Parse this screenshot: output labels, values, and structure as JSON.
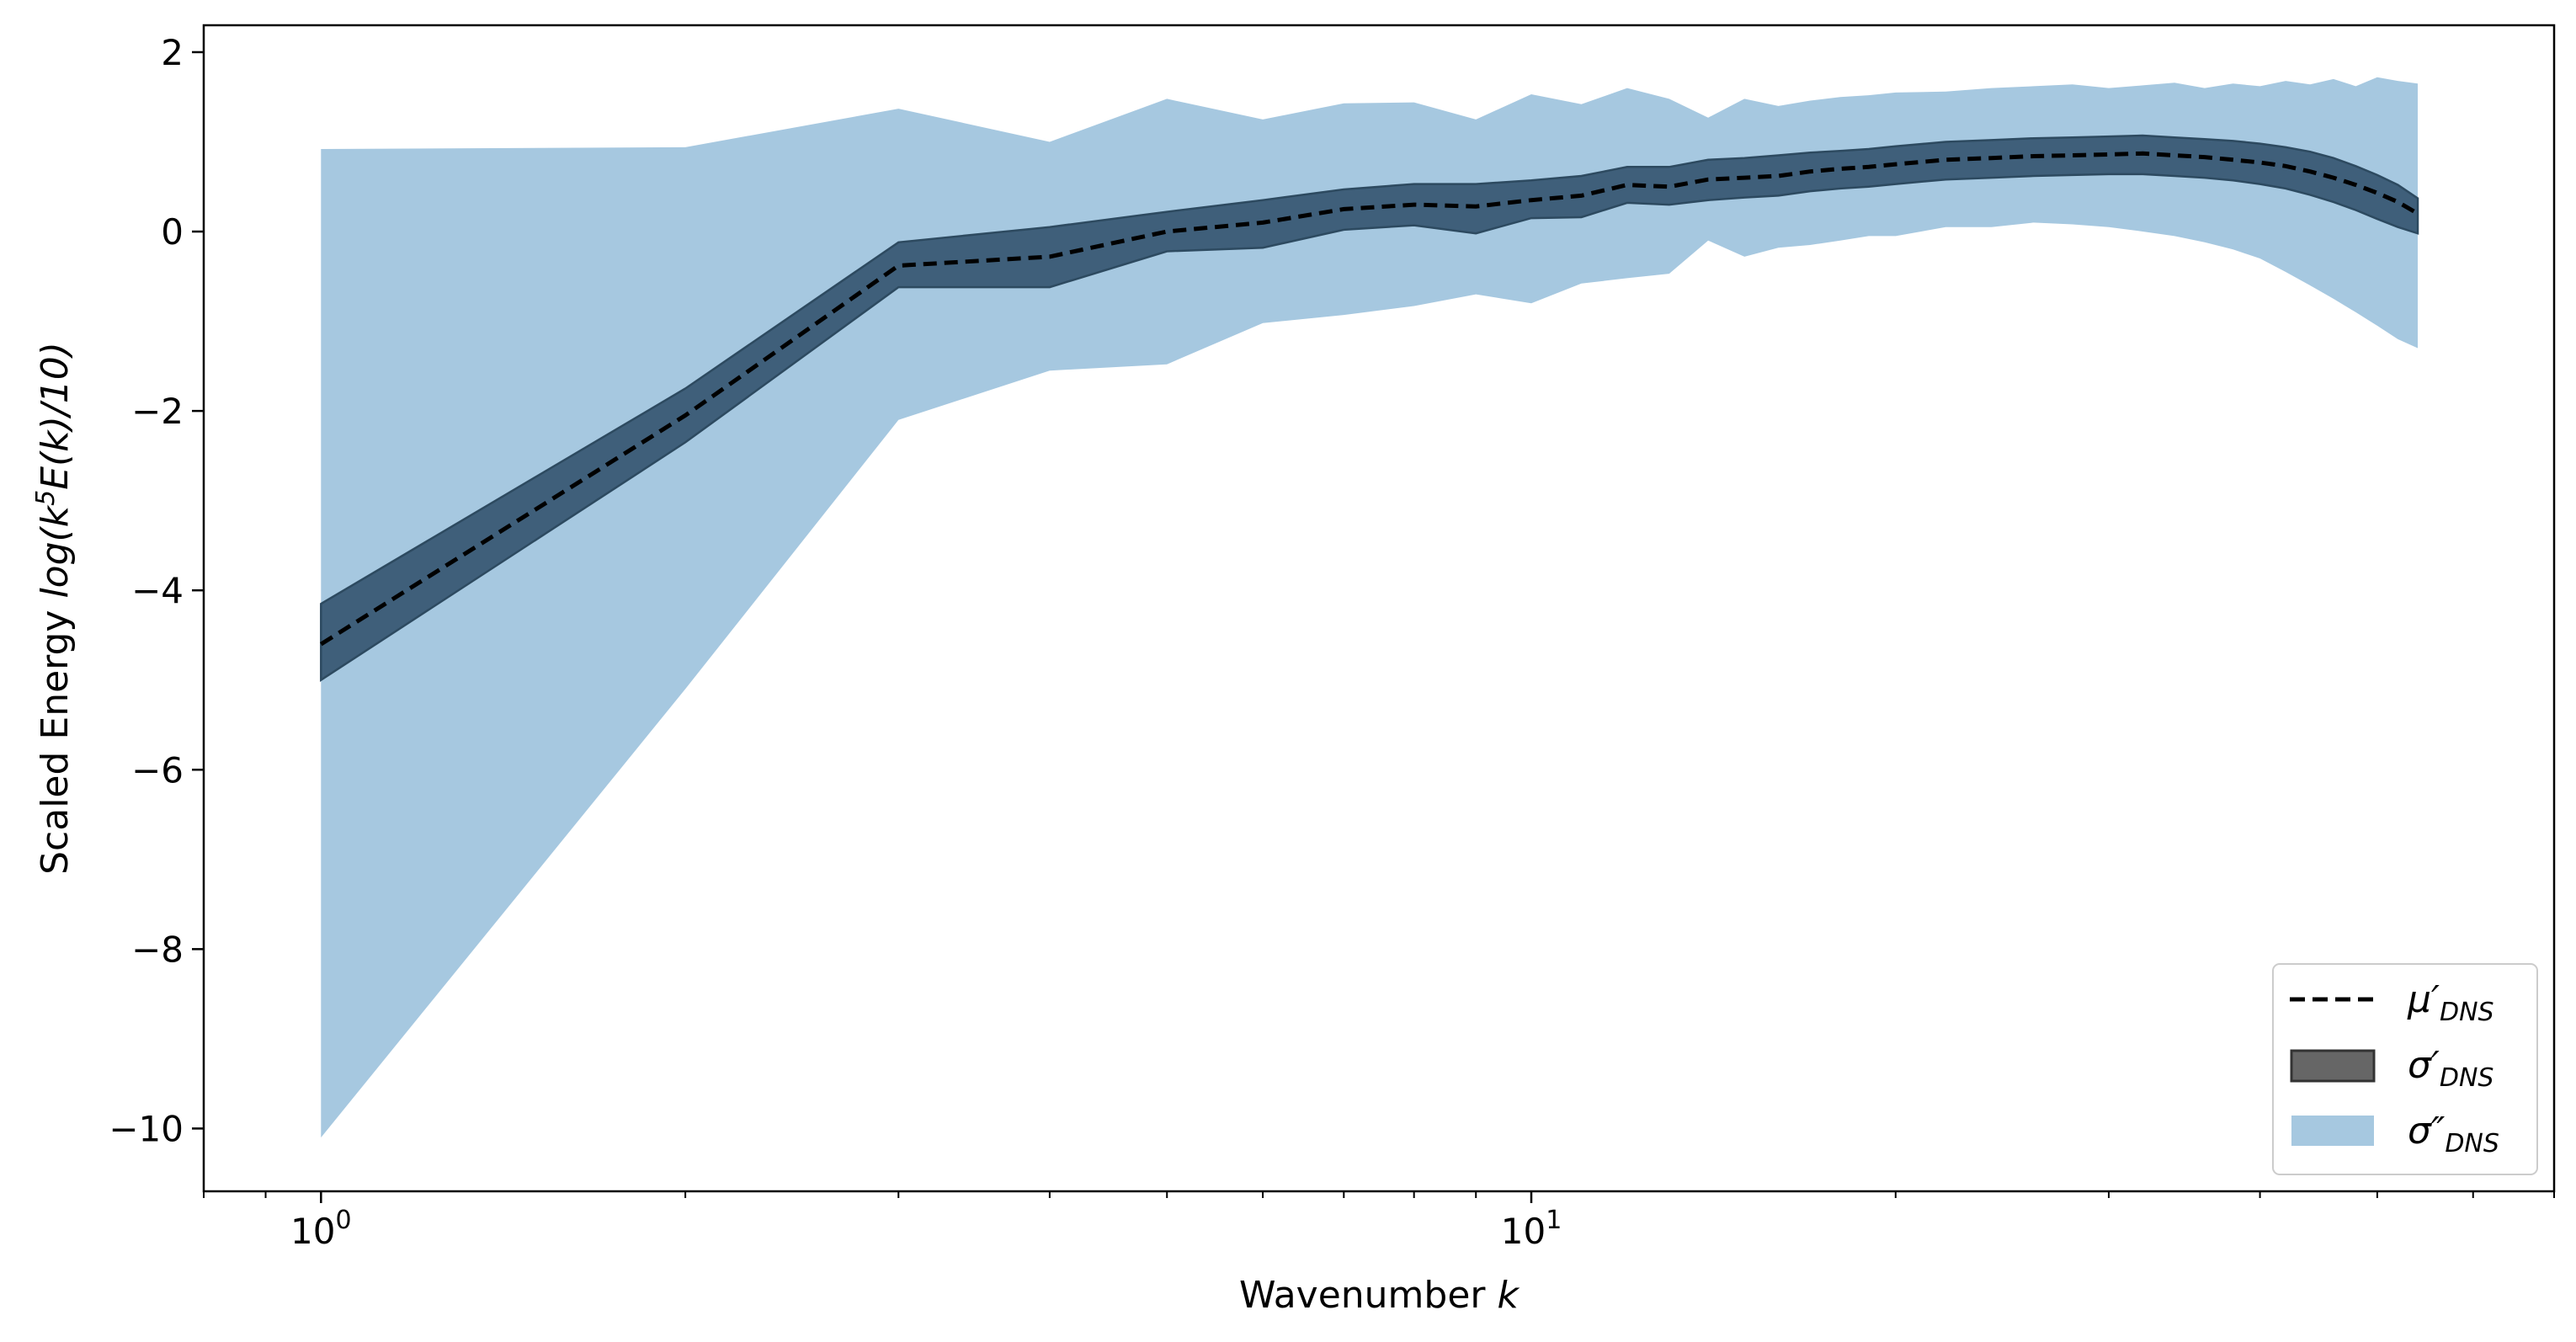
{
  "chart_data": {
    "type": "area",
    "title": "",
    "xlabel": "Wavenumber k",
    "ylabel": "Scaled Energy log(k⁵E(k)/10)",
    "x_scale": "log",
    "xlim": [
      0.8,
      70
    ],
    "ylim": [
      -10.7,
      2.3
    ],
    "yticks": [
      2,
      0,
      -2,
      -4,
      -6,
      -8,
      -10
    ],
    "ytick_labels": [
      "2",
      "0",
      "−2",
      "−4",
      "−6",
      "−8",
      "−10"
    ],
    "xticks": [
      1,
      10
    ],
    "xtick_labels": [
      "10⁰",
      "10¹"
    ],
    "grid": false,
    "legend_position": "lower-right",
    "x": [
      1,
      2,
      3,
      4,
      5,
      6,
      7,
      8,
      9,
      10,
      11,
      12,
      13,
      14,
      15,
      16,
      17,
      18,
      19,
      20,
      22,
      24,
      26,
      28,
      30,
      32,
      34,
      36,
      38,
      40,
      42,
      44,
      46,
      48,
      50,
      52,
      54
    ],
    "series": [
      {
        "name": "μ′DNS",
        "kind": "line",
        "style": "dashed",
        "color": "#000000",
        "values": [
          -4.6,
          -2.05,
          -0.38,
          -0.28,
          0.0,
          0.1,
          0.25,
          0.3,
          0.28,
          0.35,
          0.4,
          0.52,
          0.5,
          0.58,
          0.6,
          0.62,
          0.67,
          0.7,
          0.72,
          0.75,
          0.8,
          0.82,
          0.84,
          0.85,
          0.86,
          0.87,
          0.85,
          0.83,
          0.8,
          0.77,
          0.73,
          0.67,
          0.6,
          0.52,
          0.43,
          0.33,
          0.2
        ]
      },
      {
        "name": "σ′DNS",
        "kind": "band",
        "color": "#3f5f7a",
        "lower": [
          -5.0,
          -2.35,
          -0.62,
          -0.62,
          -0.22,
          -0.18,
          0.02,
          0.07,
          -0.02,
          0.15,
          0.16,
          0.32,
          0.3,
          0.35,
          0.38,
          0.4,
          0.45,
          0.48,
          0.5,
          0.53,
          0.58,
          0.6,
          0.62,
          0.63,
          0.64,
          0.64,
          0.62,
          0.6,
          0.57,
          0.53,
          0.48,
          0.41,
          0.33,
          0.24,
          0.14,
          0.05,
          -0.02
        ],
        "upper": [
          -4.15,
          -1.75,
          -0.12,
          0.05,
          0.22,
          0.35,
          0.47,
          0.53,
          0.53,
          0.57,
          0.62,
          0.72,
          0.72,
          0.8,
          0.82,
          0.85,
          0.88,
          0.9,
          0.92,
          0.95,
          1.0,
          1.02,
          1.04,
          1.05,
          1.06,
          1.07,
          1.05,
          1.03,
          1.01,
          0.98,
          0.94,
          0.89,
          0.82,
          0.73,
          0.63,
          0.52,
          0.37
        ]
      },
      {
        "name": "σ″DNS",
        "kind": "band",
        "color": "#a6c8e0",
        "lower": [
          -10.1,
          -5.1,
          -2.1,
          -1.55,
          -1.48,
          -1.02,
          -0.93,
          -0.83,
          -0.7,
          -0.8,
          -0.58,
          -0.52,
          -0.47,
          -0.1,
          -0.28,
          -0.18,
          -0.15,
          -0.1,
          -0.05,
          -0.05,
          0.05,
          0.05,
          0.1,
          0.08,
          0.05,
          0.0,
          -0.05,
          -0.12,
          -0.2,
          -0.3,
          -0.45,
          -0.6,
          -0.75,
          -0.9,
          -1.05,
          -1.2,
          -1.3
        ],
        "upper": [
          0.92,
          0.94,
          1.37,
          1.0,
          1.48,
          1.25,
          1.43,
          1.44,
          1.25,
          1.53,
          1.42,
          1.6,
          1.48,
          1.27,
          1.48,
          1.4,
          1.46,
          1.5,
          1.52,
          1.55,
          1.56,
          1.6,
          1.62,
          1.64,
          1.6,
          1.63,
          1.66,
          1.6,
          1.65,
          1.62,
          1.68,
          1.64,
          1.7,
          1.62,
          1.72,
          1.68,
          1.65
        ]
      }
    ]
  },
  "legend": {
    "entries": [
      {
        "symbol": "μ′",
        "sub": "DNS"
      },
      {
        "symbol": "σ′",
        "sub": "DNS"
      },
      {
        "symbol": "σ″",
        "sub": "DNS"
      }
    ]
  },
  "axis_text": {
    "ylabel_prefix": "Scaled Energy ",
    "ylabel_math": "log(k",
    "ylabel_sup": "5",
    "ylabel_math2": "E(k)/10)",
    "xlabel_prefix": "Wavenumber ",
    "xlabel_var": "k",
    "xtick_base": "10",
    "xtick_exps": [
      "0",
      "1"
    ]
  }
}
